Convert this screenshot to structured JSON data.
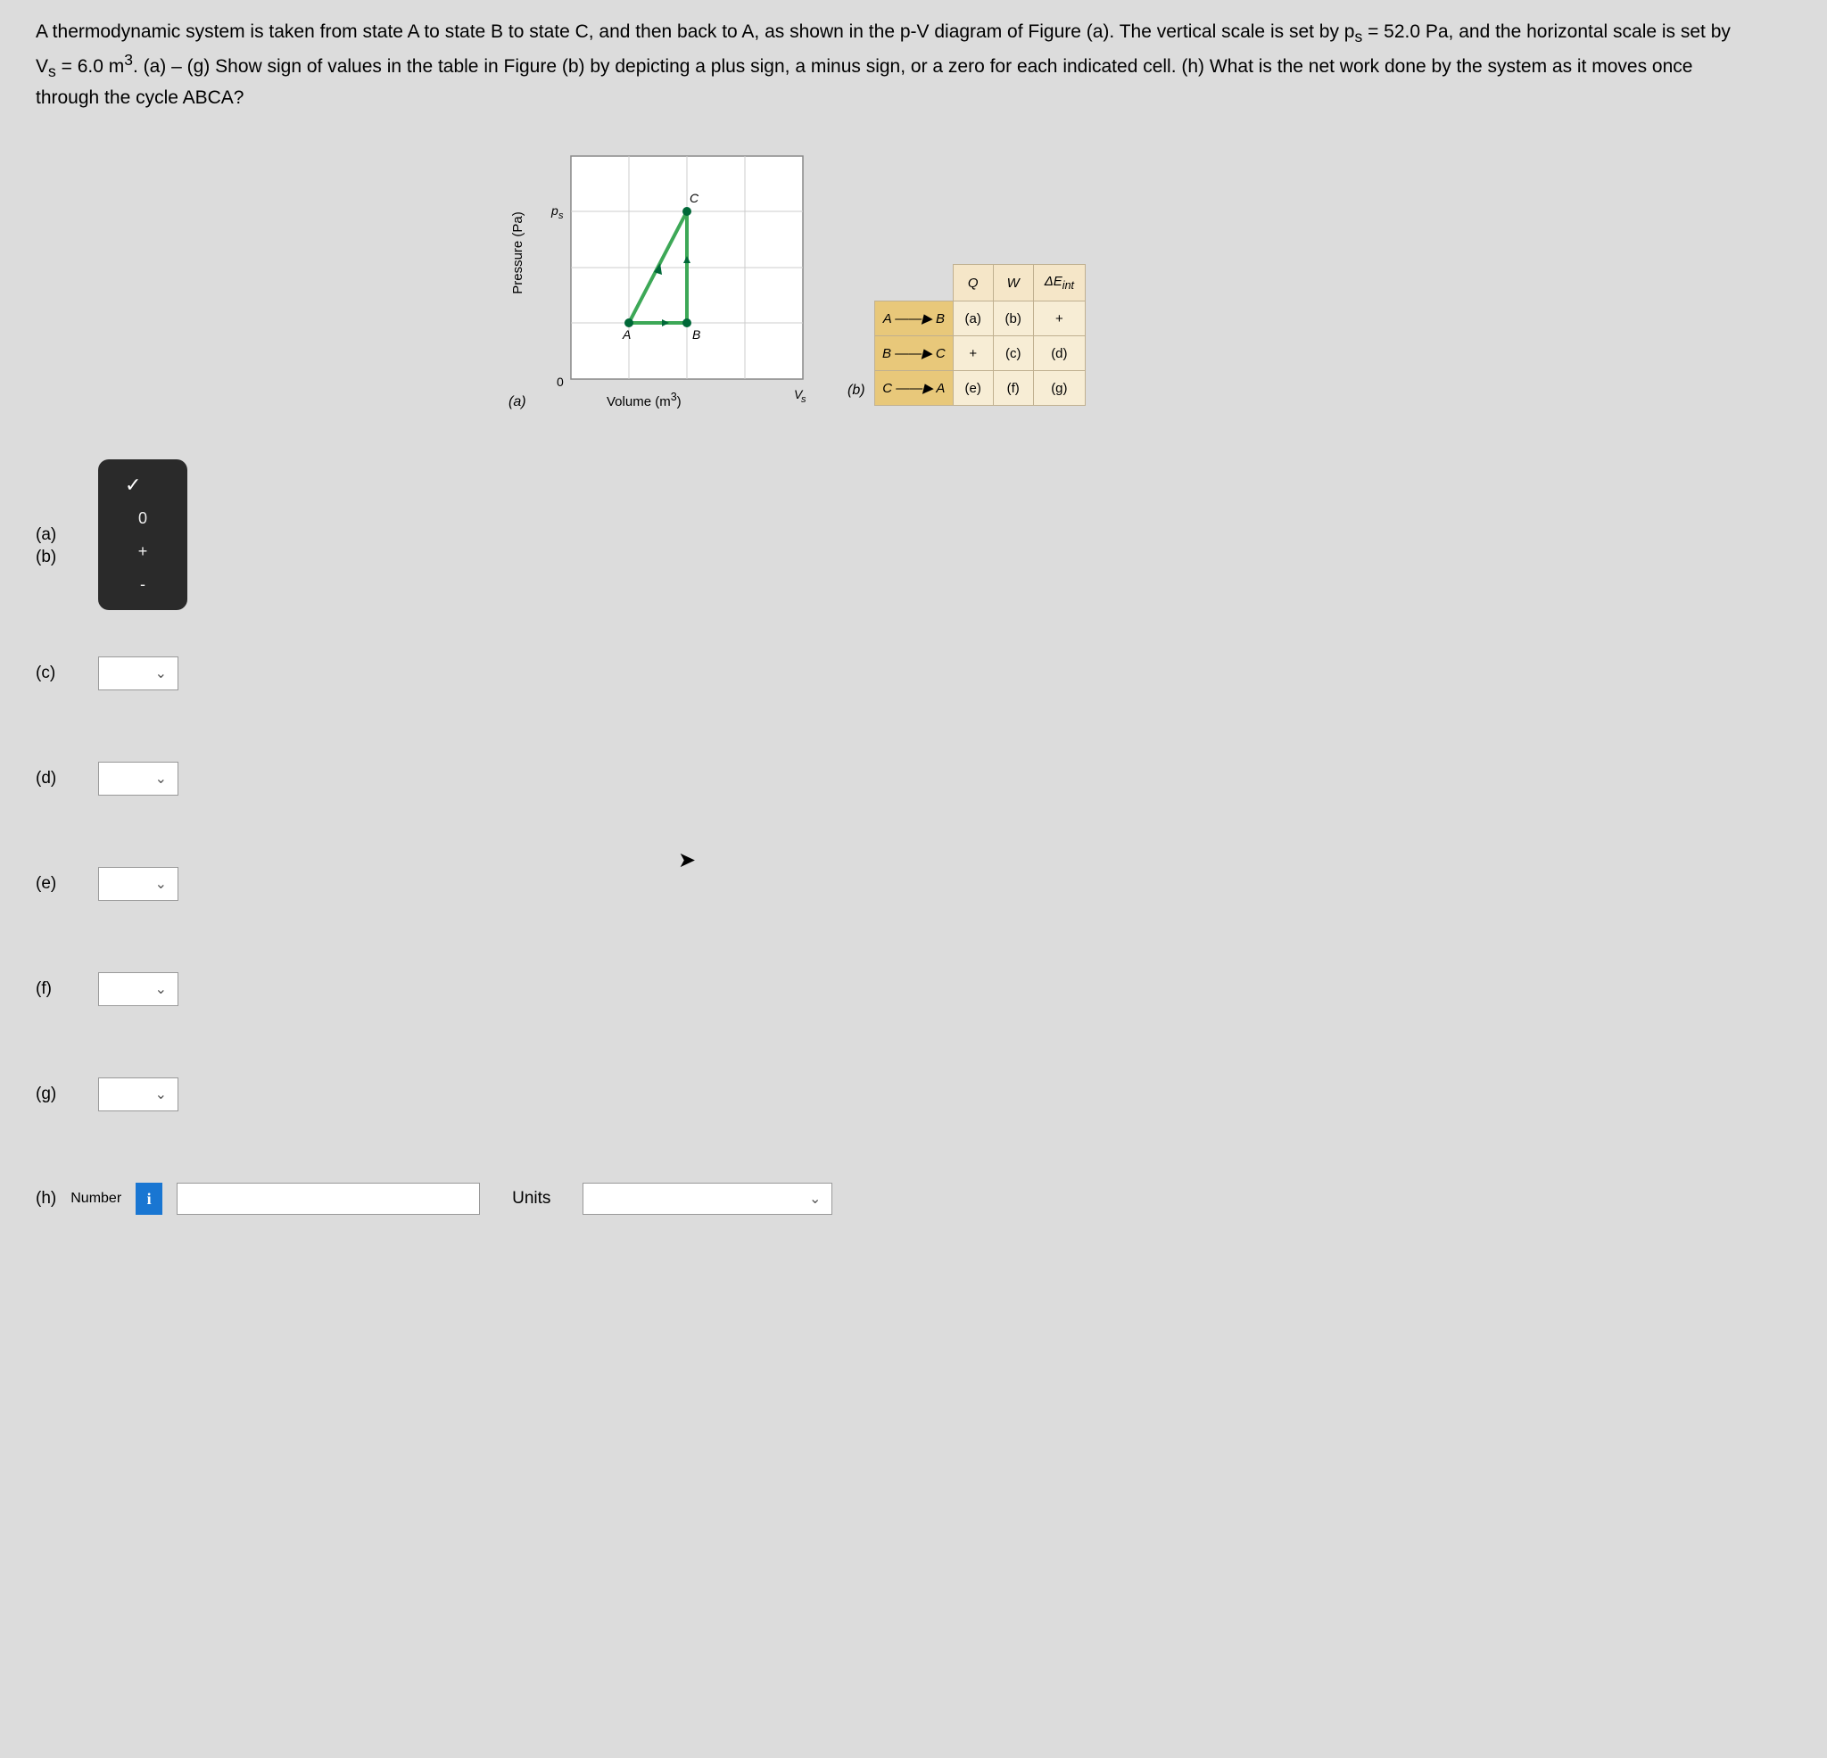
{
  "question": "A thermodynamic system is taken from state A to state B to state C, and then back to A, as shown in the p-V diagram of Figure (a). The vertical scale is set by p<sub>s</sub> = 52.0 Pa, and the horizontal scale is set by V<sub>s</sub> = 6.0 m<sup>3</sup>. (a) – (g) Show sign of values in the table in Figure (b) by depicting a plus sign, a minus sign, or a zero for each indicated cell. (h) What is the net work done by the system as it moves once through the cycle ABCA?",
  "figure_a": {
    "yaxis": "Pressure (Pa)",
    "ytick": "p<sub>s</sub>",
    "xaxis": "Volume (m<sup>3</sup>)",
    "xtick": "V<sub>s</sub>",
    "zero": "0",
    "caption": "(a)",
    "points": {
      "A": {
        "label": "A",
        "x": 1,
        "y": 1
      },
      "B": {
        "label": "B",
        "x": 2,
        "y": 1
      },
      "C": {
        "label": "C",
        "x": 2,
        "y": 3
      }
    },
    "grid": {
      "xmax": 4,
      "ymax": 4
    },
    "line_color": "#3da857",
    "point_color": "#006838"
  },
  "figure_b": {
    "caption": "(b)",
    "headers": [
      "Q",
      "W",
      "ΔE<sub>int</sub>"
    ],
    "rows": [
      {
        "process": "A ——▶ B",
        "cells": [
          "(a)",
          "(b)",
          "+"
        ]
      },
      {
        "process": "B ——▶ C",
        "cells": [
          "+",
          "(c)",
          "(d)"
        ]
      },
      {
        "process": "C ——▶ A",
        "cells": [
          "(e)",
          "(f)",
          "(g)"
        ]
      }
    ]
  },
  "answers": {
    "ab_open": {
      "a_label": "(a)",
      "b_label": "(b)",
      "check": "✓",
      "options": [
        "0",
        "+",
        "-"
      ]
    },
    "items": [
      {
        "label": "(c)"
      },
      {
        "label": "(d)"
      },
      {
        "label": "(e)"
      },
      {
        "label": "(f)"
      },
      {
        "label": "(g)"
      }
    ],
    "h": {
      "label": "(h)",
      "number_label": "Number",
      "info": "i",
      "units_label": "Units"
    }
  },
  "chevron": "⌄"
}
